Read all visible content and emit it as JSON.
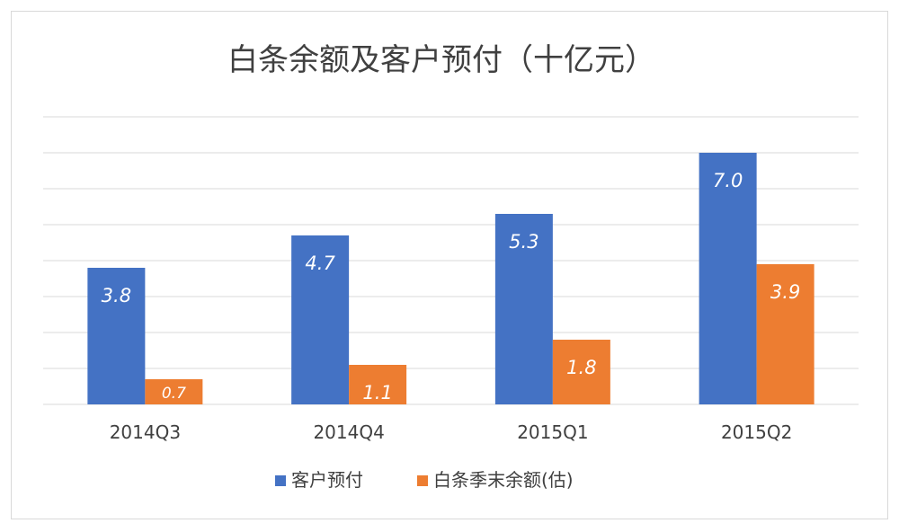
{
  "chart_data": {
    "type": "bar",
    "title": "白条余额及客户预付（十亿元）",
    "categories": [
      "2014Q3",
      "2014Q4",
      "2015Q1",
      "2015Q2"
    ],
    "series": [
      {
        "name": "客户预付",
        "values": [
          3.8,
          4.7,
          5.3,
          7.0
        ],
        "labels": [
          "3.8",
          "4.7",
          "5.3",
          "7.0"
        ],
        "color": "#4472c4"
      },
      {
        "name": "白条季末余额(估)",
        "values": [
          0.7,
          1.1,
          1.8,
          3.9
        ],
        "labels": [
          "0.7",
          "1.1",
          "1.8",
          "3.9"
        ],
        "color": "#ed7d31"
      }
    ],
    "ylim": [
      0,
      8
    ],
    "xlabel": "",
    "ylabel": "",
    "grid": true,
    "legend": "bottom-center",
    "gridline_color": "#d9d9d9",
    "data_label_color": "#ffffff"
  }
}
